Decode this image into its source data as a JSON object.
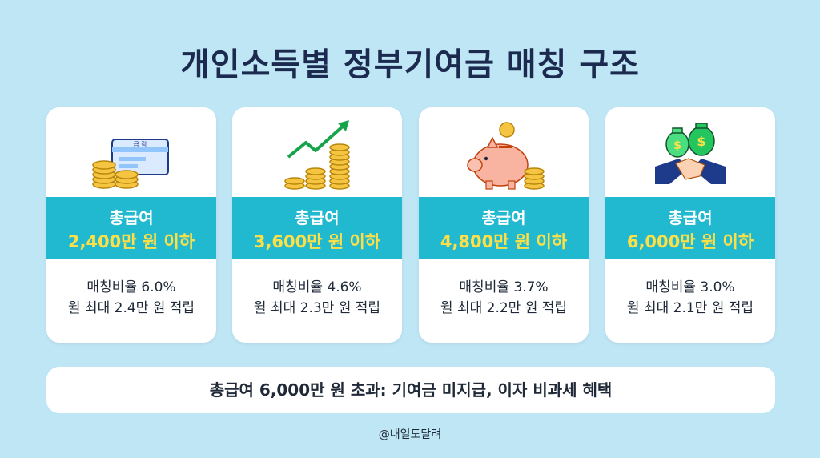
{
  "title": "개인소득별 정부기여금 매칭 구조",
  "cards": [
    {
      "icon": "salary-card-coins-icon",
      "icon_card_text": "급 락",
      "band_line1": "총급여",
      "band_line2": "2,400만 원 이하",
      "desc_line1": "매칭비율 6.0%",
      "desc_line2": "월 최대 2.4만 원 적립"
    },
    {
      "icon": "growth-arrow-coins-icon",
      "band_line1": "총급여",
      "band_line2": "3,600만 원 이하",
      "desc_line1": "매칭비율 4.6%",
      "desc_line2": "월 최대 2.3만 원 적립"
    },
    {
      "icon": "piggy-bank-icon",
      "band_line1": "총급여",
      "band_line2": "4,800만 원 이하",
      "desc_line1": "매칭비율 3.7%",
      "desc_line2": "월 최대 2.2만 원 적립"
    },
    {
      "icon": "handshake-money-bags-icon",
      "band_line1": "총급여",
      "band_line2": "6,000만 원 이하",
      "desc_line1": "매칭비율 3.0%",
      "desc_line2": "월 최대 2.1만 원 적립"
    }
  ],
  "bottom_note": "총급여 6,000만 원 초과: 기여금 미지급, 이자 비과세 혜택",
  "footer": "@내일도달려",
  "colors": {
    "background": "#bfe6f5",
    "band": "#21b9cf",
    "band_highlight": "#fde047",
    "title": "#1b2a4e"
  }
}
